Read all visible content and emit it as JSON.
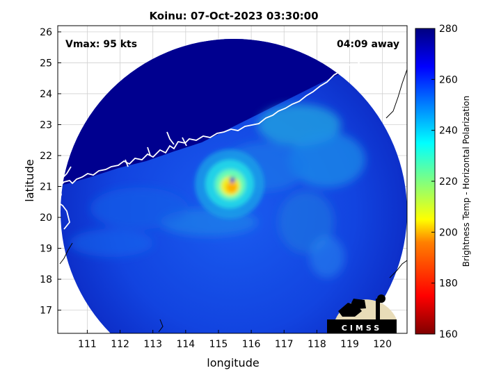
{
  "title": "Koinu: 07-Oct-2023 03:30:00",
  "annotations": {
    "vmax": "Vmax: 95 kts",
    "time_away": "04:09 away"
  },
  "axes": {
    "xlabel": "longitude",
    "ylabel": "latitude",
    "x_ticks": [
      "111",
      "112",
      "113",
      "114",
      "115",
      "116",
      "117",
      "118",
      "119",
      "120"
    ],
    "y_ticks": [
      "17",
      "18",
      "19",
      "20",
      "21",
      "22",
      "23",
      "24",
      "25",
      "26"
    ],
    "xlim": [
      110.1,
      120.75
    ],
    "ylim": [
      16.25,
      26.2
    ]
  },
  "colorbar": {
    "label": "Brightness Temp - Horizontal Polarization",
    "ticks": [
      "160",
      "180",
      "200",
      "220",
      "240",
      "260",
      "280"
    ],
    "range": [
      160,
      280
    ],
    "colormap": "jet"
  },
  "logo": {
    "text": "CIMSS"
  },
  "colors": {
    "background_dark": "#00008f",
    "coastline": "#ffffff",
    "border": "#000000"
  }
}
